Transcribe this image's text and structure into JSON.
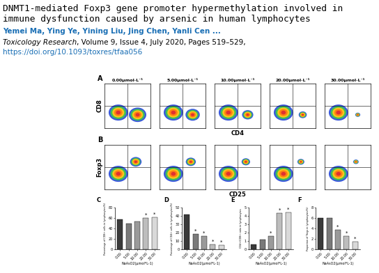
{
  "header": {
    "title_lines": [
      "DNMT1-mediated Foxp3 gene promoter hypermethylation involved in",
      "immune dysfunction caused by arsenic in human lymphocytes"
    ],
    "authors": "Yemei Ma, Ying Ye, Yining Liu, Jing Chen, Yanli Cen ...",
    "journal": "Toxicology Research",
    "citation": ", Volume 9, Issue 4, July 2020, Pages 519–529,",
    "doi": "https://doi.org/10.1093/toxres/tfaa056"
  },
  "flow_cytometry": {
    "concentrations": [
      "0.00μmol·L⁻¹",
      "5.00μmol·L⁻¹",
      "10.00μmol·L⁻¹",
      "20.00μmol·L⁻¹",
      "30.00μmol·L⁻¹"
    ],
    "rows": [
      {
        "panel": "A",
        "y_label": "CD8",
        "x_label": "CD4"
      },
      {
        "panel": "B",
        "y_label": "Foxp3",
        "x_label": "CD25"
      }
    ]
  },
  "chart_data": [
    {
      "type": "bar",
      "panel": "C",
      "y_label": "Percentage of CD8+ cells in lymphocytes(%)",
      "x_label": "NaAsO2(μmol*L-1)",
      "categories": [
        "0.00",
        "5.00",
        "10.00",
        "20.00",
        "30.00"
      ],
      "values": [
        58,
        50,
        54,
        60,
        62
      ],
      "significance": [
        null,
        null,
        null,
        "*",
        "*"
      ],
      "colors": [
        "#3a3a3a",
        "#7a7a7a",
        "#9a9a9a",
        "#bdbdbd",
        "#d9d9d9"
      ],
      "ylim": [
        0,
        80
      ],
      "yticks": [
        0,
        20,
        40,
        60,
        80
      ]
    },
    {
      "type": "bar",
      "panel": "D",
      "y_label": "Percentage of CD4+ cells in lymphocytes(%)",
      "x_label": "NaAsO2(μmol*L-1)",
      "categories": [
        "0.00",
        "5.00",
        "10.00",
        "20.00",
        "30.00"
      ],
      "values": [
        42,
        18,
        16,
        6,
        5
      ],
      "significance": [
        null,
        "*",
        "*",
        "*",
        "*"
      ],
      "colors": [
        "#3a3a3a",
        "#7a7a7a",
        "#9a9a9a",
        "#bdbdbd",
        "#d9d9d9"
      ],
      "ylim": [
        0,
        50
      ],
      "yticks": [
        0,
        10,
        20,
        30,
        40,
        50
      ]
    },
    {
      "type": "bar",
      "panel": "E",
      "y_label": "CD4+/CD8+ ratio in lymphocytes",
      "x_label": "NaAsO2(μmol*L-1)",
      "categories": [
        "0.00",
        "5.00",
        "10.00",
        "20.00",
        "30.00"
      ],
      "values": [
        0.6,
        1.2,
        1.6,
        4.3,
        4.4
      ],
      "significance": [
        null,
        null,
        "*",
        "*",
        "*"
      ],
      "colors": [
        "#3a3a3a",
        "#7a7a7a",
        "#9a9a9a",
        "#bdbdbd",
        "#d9d9d9"
      ],
      "ylim": [
        0,
        5
      ],
      "yticks": [
        0,
        1,
        2,
        3,
        4,
        5
      ]
    },
    {
      "type": "bar",
      "panel": "F",
      "y_label": "Proportion of Tregs in lymphocytes(%)",
      "x_label": "NaAsO2(μmol*L-1)",
      "categories": [
        "0.00",
        "5.00",
        "10.00",
        "20.00",
        "30.00"
      ],
      "values": [
        6,
        6,
        3.8,
        2.5,
        1.5
      ],
      "significance": [
        null,
        null,
        "*",
        "*",
        "*"
      ],
      "colors": [
        "#3a3a3a",
        "#7a7a7a",
        "#9a9a9a",
        "#bdbdbd",
        "#d9d9d9"
      ],
      "ylim": [
        0,
        8
      ],
      "yticks": [
        0,
        2,
        4,
        6,
        8
      ]
    }
  ]
}
